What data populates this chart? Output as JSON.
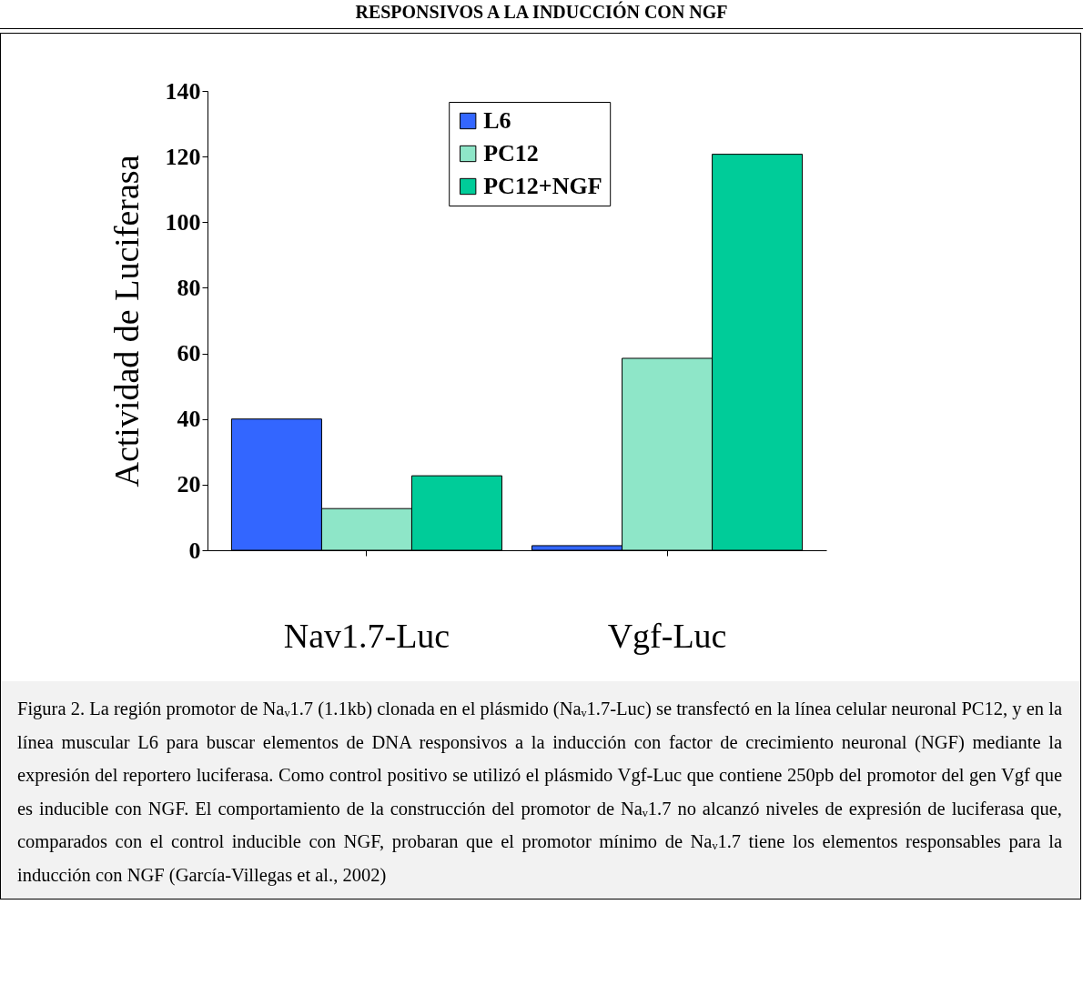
{
  "chart_data": {
    "type": "bar",
    "title": "RESPONSIVOS A LA INDUCCIÓN CON NGF",
    "ylabel": "Actividad de Luciferasa",
    "categories": [
      "Nav1.7-Luc",
      "Vgf-Luc"
    ],
    "series": [
      {
        "name": "L6",
        "color": "#3366ff",
        "values": [
          40,
          1.4
        ]
      },
      {
        "name": "PC12",
        "color": "#8ee6c8",
        "values": [
          12.7,
          58.5
        ]
      },
      {
        "name": "PC12+NGF",
        "color": "#00cc99",
        "values": [
          22.7,
          120.7
        ]
      }
    ],
    "ylim": [
      0,
      140
    ],
    "yticks": [
      0,
      20,
      40,
      60,
      80,
      100,
      120,
      140
    ],
    "grid": false,
    "legend": "top",
    "annotations": [
      "Figura 2. La región promotor de Naᵥ1.7 (1.1kb) clonada en el plásmido (Naᵥ1.7-Luc) se transfectó en la línea celular neuronal PC12, y en la línea muscular L6 para buscar elementos de DNA responsivos a la inducción con factor de crecimiento neuronal (NGF) mediante la expresión del reportero luciferasa. Como control positivo se utilizó el plásmido Vgf-Luc que contiene 250pb del promotor del gen Vgf que es inducible con NGF. El comportamiento de la construcción del promotor de Naᵥ1.7 no alcanzó niveles de expresión de luciferasa que, comparados con el control inducible con NGF, probaran que el promotor mínimo de Naᵥ1.7 tiene los elementos responsables para la inducción con NGF (García-Villegas et al., 2002)"
    ]
  }
}
